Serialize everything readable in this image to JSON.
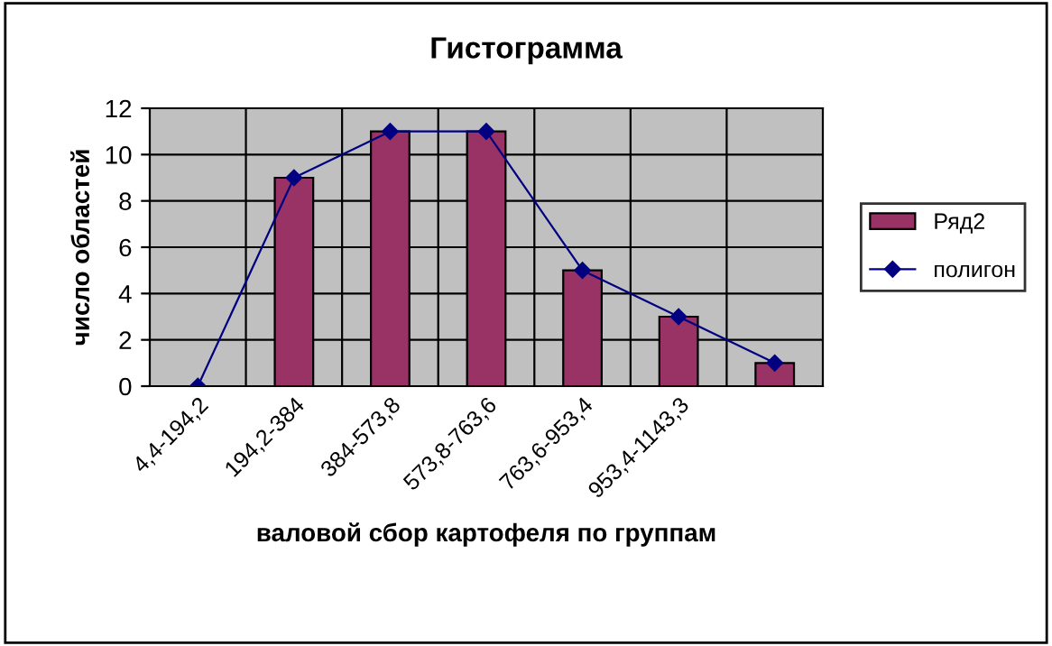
{
  "chart_data": {
    "type": "bar",
    "title": "Гистограмма",
    "xlabel": "валовой сбор картофеля по группам",
    "ylabel": "число областей",
    "categories": [
      "4,4-194,2",
      "194,2-384",
      "384-573,8",
      "573,8-763,6",
      "763,6-953,4",
      "953,4-1143,3",
      null
    ],
    "series": [
      {
        "name": "Ряд2",
        "color": "#993366",
        "values": [
          null,
          9,
          11,
          11,
          5,
          3,
          1
        ]
      },
      {
        "name": "полигон",
        "type": "line",
        "color": "#000080",
        "marker": "diamond",
        "values": [
          0,
          9,
          11,
          11,
          5,
          3,
          1
        ]
      }
    ],
    "ylim": [
      0,
      12
    ],
    "yticks": [
      0,
      2,
      4,
      6,
      8,
      10,
      12
    ],
    "grid": true,
    "legend": "right"
  }
}
